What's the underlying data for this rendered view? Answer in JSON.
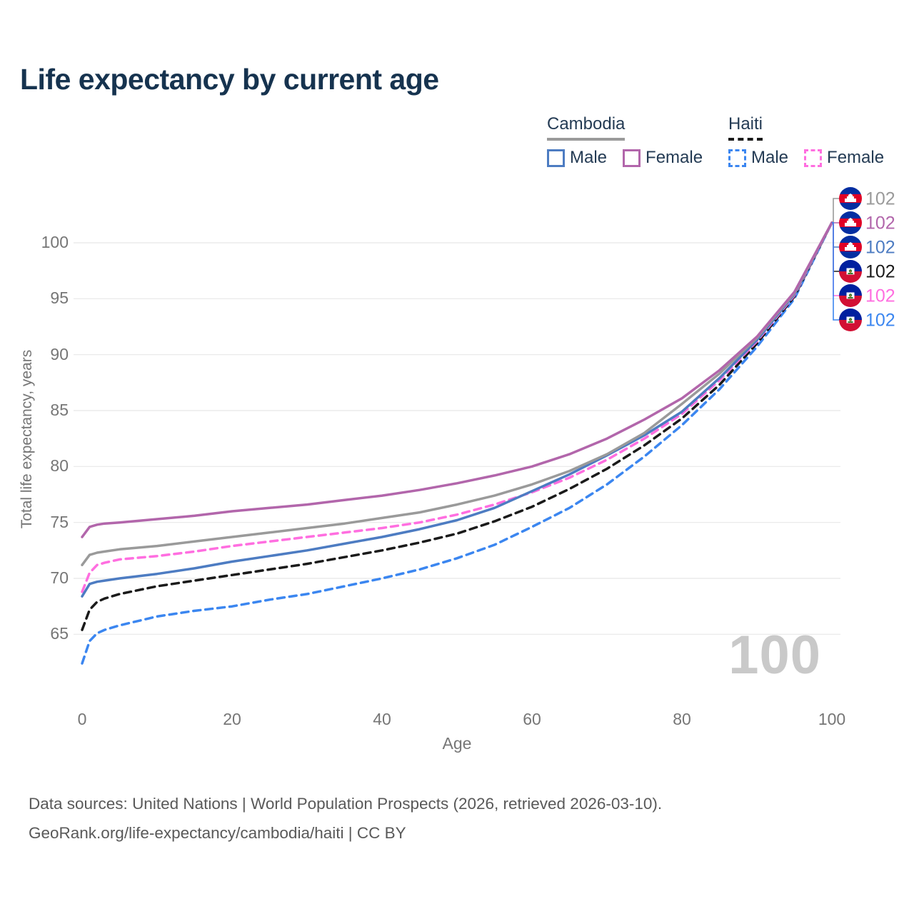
{
  "title": "Life expectancy by current age",
  "legend": {
    "cambodia": {
      "label": "Cambodia",
      "male_label": "Male",
      "female_label": "Female"
    },
    "haiti": {
      "label": "Haiti",
      "male_label": "Male",
      "female_label": "Female"
    }
  },
  "age_counter": "100",
  "footer": {
    "line1": "Data sources: United Nations | World Population Prospects (2026, retrieved 2026-03-10).",
    "line2": "GeoRank.org/life-expectancy/cambodia/haiti | CC BY"
  },
  "chart_data": {
    "type": "line",
    "title": "Life expectancy by current age",
    "xlabel": "Age",
    "ylabel": "Total life expectancy, years",
    "xlim": [
      0,
      100
    ],
    "ylim": [
      62,
      103
    ],
    "x_ticks": [
      0,
      20,
      40,
      60,
      80,
      100
    ],
    "y_ticks": [
      65,
      70,
      75,
      80,
      85,
      90,
      95,
      100
    ],
    "grid": "horizontal-only",
    "legend_position": "top-right",
    "ages": [
      0,
      1,
      2,
      3,
      5,
      10,
      15,
      20,
      25,
      30,
      35,
      40,
      45,
      50,
      55,
      60,
      65,
      70,
      75,
      80,
      85,
      90,
      95,
      100
    ],
    "series": [
      {
        "name": "Cambodia Female",
        "country": "Cambodia",
        "sex": "Female",
        "line": "solid",
        "color": "#b266ab",
        "flag": "cambodia",
        "end_label": "102",
        "values": [
          73.7,
          74.6,
          74.8,
          74.9,
          75.0,
          75.3,
          75.6,
          76.0,
          76.3,
          76.6,
          77.0,
          77.4,
          77.9,
          78.5,
          79.2,
          80.0,
          81.1,
          82.5,
          84.2,
          86.1,
          88.6,
          91.6,
          95.6,
          101.8
        ]
      },
      {
        "name": "Cambodia Both sexes",
        "country": "Cambodia",
        "sex": "Both",
        "line": "solid",
        "color": "#9a9a9a",
        "flag": "cambodia",
        "end_label": "102",
        "values": [
          71.2,
          72.1,
          72.3,
          72.4,
          72.6,
          72.9,
          73.3,
          73.7,
          74.1,
          74.5,
          74.9,
          75.4,
          75.9,
          76.6,
          77.4,
          78.4,
          79.6,
          81.1,
          83.0,
          85.6,
          88.3,
          91.5,
          95.5,
          101.8
        ]
      },
      {
        "name": "Cambodia Male",
        "country": "Cambodia",
        "sex": "Male",
        "line": "solid",
        "color": "#4d7cc2",
        "flag": "cambodia",
        "end_label": "102",
        "values": [
          68.4,
          69.5,
          69.7,
          69.8,
          70.0,
          70.4,
          70.9,
          71.5,
          72.0,
          72.5,
          73.1,
          73.7,
          74.4,
          75.2,
          76.3,
          77.8,
          79.3,
          81.0,
          82.8,
          84.9,
          87.9,
          91.3,
          95.4,
          101.8
        ]
      },
      {
        "name": "Haiti Both sexes",
        "country": "Haiti",
        "sex": "Both",
        "line": "dashed",
        "color": "#1a1a1a",
        "flag": "haiti",
        "end_label": "102",
        "values": [
          65.4,
          67.2,
          67.9,
          68.2,
          68.6,
          69.3,
          69.8,
          70.3,
          70.8,
          71.3,
          71.9,
          72.5,
          73.2,
          74.0,
          75.1,
          76.4,
          78.0,
          79.8,
          81.9,
          84.3,
          87.3,
          91.0,
          95.2,
          101.8
        ]
      },
      {
        "name": "Haiti Female",
        "country": "Haiti",
        "sex": "Female",
        "line": "dashed",
        "color": "#ff6ee0",
        "flag": "haiti",
        "end_label": "102",
        "values": [
          68.8,
          70.5,
          71.2,
          71.4,
          71.7,
          72.0,
          72.4,
          72.9,
          73.3,
          73.7,
          74.1,
          74.5,
          75.0,
          75.7,
          76.6,
          77.7,
          79.0,
          80.6,
          82.5,
          84.7,
          87.7,
          91.2,
          95.3,
          101.8
        ]
      },
      {
        "name": "Haiti Male",
        "country": "Haiti",
        "sex": "Male",
        "line": "dashed",
        "color": "#3b86f0",
        "flag": "haiti",
        "end_label": "102",
        "values": [
          62.4,
          64.4,
          65.1,
          65.4,
          65.8,
          66.6,
          67.1,
          67.5,
          68.1,
          68.6,
          69.3,
          70.0,
          70.8,
          71.8,
          73.0,
          74.6,
          76.3,
          78.4,
          80.9,
          83.7,
          86.9,
          90.7,
          95.0,
          101.8
        ]
      }
    ],
    "draw_order": [
      "Haiti Male",
      "Haiti Both sexes",
      "Haiti Female",
      "Cambodia Male",
      "Cambodia Both sexes",
      "Cambodia Female"
    ],
    "end_label_order": [
      "Cambodia Both sexes",
      "Cambodia Female",
      "Cambodia Male",
      "Haiti Both sexes",
      "Haiti Female",
      "Haiti Male"
    ],
    "gridline_color": "#e8e8e8",
    "axis_text_color": "#767676"
  }
}
